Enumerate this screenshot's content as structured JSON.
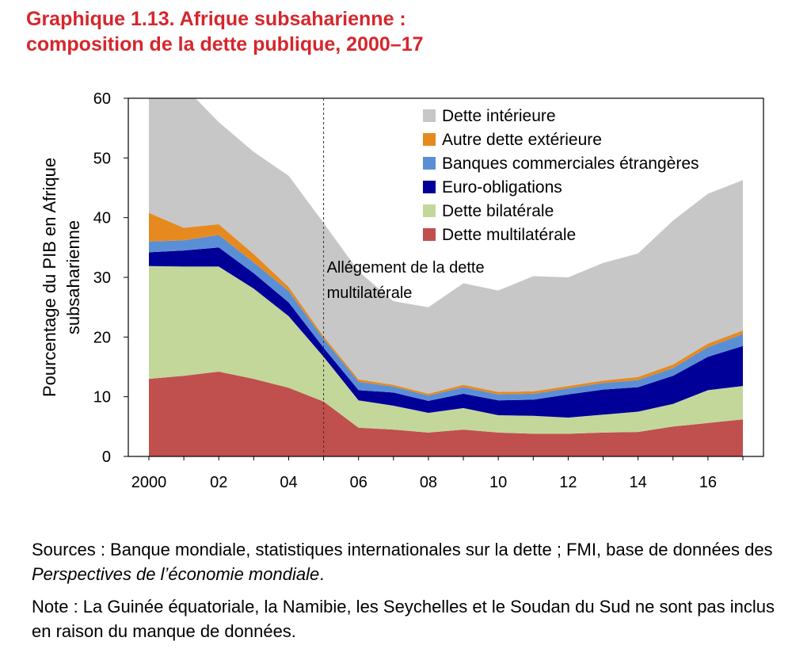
{
  "title": {
    "line1": "Graphique 1.13.  Afrique subsaharienne :",
    "line2": "composition de la dette publique, 2000–17"
  },
  "chart_data": {
    "type": "area",
    "stacked": true,
    "ylabel_line1": "Pourcentage du PIB en Afrique",
    "ylabel_line2": "subsaharienne",
    "ylim": [
      0,
      60
    ],
    "yticks": [
      0,
      10,
      20,
      30,
      40,
      50,
      60
    ],
    "x": [
      2000,
      2001,
      2002,
      2003,
      2004,
      2005,
      2006,
      2007,
      2008,
      2009,
      2010,
      2011,
      2012,
      2013,
      2014,
      2015,
      2016,
      2017
    ],
    "xtick_values": [
      2000,
      2002,
      2004,
      2006,
      2008,
      2010,
      2012,
      2014,
      2016
    ],
    "xtick_labels": [
      "2000",
      "02",
      "04",
      "06",
      "08",
      "10",
      "12",
      "14",
      "16"
    ],
    "grid": false,
    "legend_position": "top-right",
    "series": [
      {
        "name": "Dette multilatérale",
        "color": "#c0504d",
        "values": [
          13.0,
          13.5,
          14.2,
          13.0,
          11.5,
          9.2,
          4.8,
          4.5,
          4.0,
          4.5,
          4.0,
          3.8,
          3.8,
          4.0,
          4.1,
          5.0,
          5.6,
          6.2
        ]
      },
      {
        "name": "Dette bilatérale",
        "color": "#c4d79b",
        "values": [
          18.9,
          18.3,
          17.6,
          15.1,
          12.0,
          7.5,
          4.6,
          4.0,
          3.3,
          3.6,
          2.9,
          3.0,
          2.7,
          3.0,
          3.4,
          3.8,
          5.5,
          5.6
        ]
      },
      {
        "name": "Euro-obligations",
        "color": "#000099",
        "values": [
          2.3,
          2.7,
          3.2,
          2.6,
          2.3,
          1.5,
          1.7,
          2.2,
          2.0,
          2.4,
          2.5,
          2.7,
          3.9,
          4.2,
          4.1,
          4.7,
          5.6,
          6.7
        ]
      },
      {
        "name": "Banques commerciales étrangères",
        "color": "#5b8fd5",
        "values": [
          1.8,
          1.7,
          2.1,
          1.8,
          1.9,
          1.5,
          1.4,
          1.0,
          0.9,
          1.1,
          1.0,
          1.0,
          1.0,
          1.1,
          1.2,
          1.3,
          1.6,
          2.0
        ]
      },
      {
        "name": "Autre dette extérieure",
        "color": "#e68a1f",
        "values": [
          4.8,
          2.1,
          1.8,
          1.4,
          0.7,
          0.4,
          0.4,
          0.3,
          0.3,
          0.4,
          0.4,
          0.4,
          0.4,
          0.4,
          0.5,
          0.6,
          0.6,
          0.6
        ]
      },
      {
        "name": "Dette intérieure",
        "color": "#c7c7c7",
        "values": [
          21.2,
          23.7,
          17.1,
          17.1,
          18.6,
          19.0,
          18.1,
          14.0,
          14.5,
          17.0,
          17.0,
          19.3,
          18.2,
          19.7,
          20.7,
          24.1,
          25.1,
          25.2
        ]
      }
    ],
    "annotation": {
      "x": 2005,
      "text_line1": "Allégement de la dette",
      "text_line2": "multilatérale"
    }
  },
  "notes": {
    "sources": "Sources : Banque mondiale, statistiques internationales sur la dette ; FMI, base de données des ",
    "sources_italic": "Perspectives de l’économie mondiale",
    "sources_end": ".",
    "note": "Note : La Guinée équatoriale, la Namibie, les Seychelles et le Soudan du Sud ne sont pas inclus en raison du manque de données."
  }
}
